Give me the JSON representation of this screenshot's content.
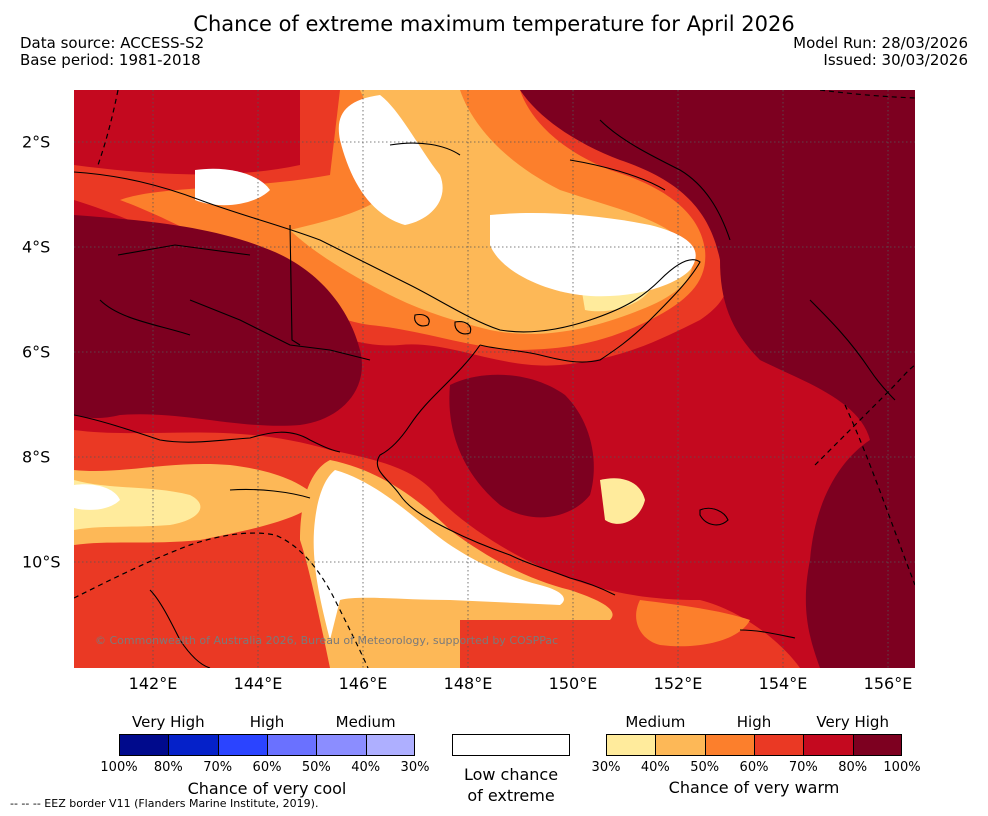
{
  "title": "Chance of extreme maximum temperature for April 2026",
  "meta": {
    "data_source": "Data source: ACCESS-S2",
    "base_period": "Base period: 1981-2018",
    "model_run": "Model Run: 28/03/2026",
    "issued": "Issued: 30/03/2026"
  },
  "map": {
    "longitude_labels": [
      "142°E",
      "144°E",
      "146°E",
      "148°E",
      "150°E",
      "152°E",
      "154°E",
      "156°E"
    ],
    "latitude_labels": [
      "2°S",
      "4°S",
      "6°S",
      "8°S",
      "10°S"
    ],
    "credit": "© Commonwealth of Australia 2026, Bureau of Meteorology, supported by COSPPac",
    "gridlines": "dotted"
  },
  "legend": {
    "cool": {
      "categories": [
        "Very High",
        "High",
        "Medium"
      ],
      "percent_labels": [
        "100%",
        "80%",
        "70%",
        "60%",
        "50%",
        "40%",
        "30%"
      ],
      "colors": [
        "#000a8c",
        "#0521c9",
        "#2b44ff",
        "#6a71ff",
        "#8b8dff",
        "#aeafff"
      ],
      "title": "Chance of very cool"
    },
    "neutral": {
      "line1": "Low chance",
      "line2": "of extreme",
      "color": "#ffffff"
    },
    "warm": {
      "categories": [
        "Medium",
        "High",
        "Very High"
      ],
      "percent_labels": [
        "30%",
        "40%",
        "50%",
        "60%",
        "70%",
        "80%",
        "100%"
      ],
      "colors": [
        "#ffeb9c",
        "#fdb857",
        "#fc7f2c",
        "#ea3924",
        "#c4091f",
        "#7d0020"
      ],
      "title": "Chance of very warm"
    }
  },
  "eez_note": "-- -- -- EEZ border V11 (Flanders Marine Institute, 2019)."
}
